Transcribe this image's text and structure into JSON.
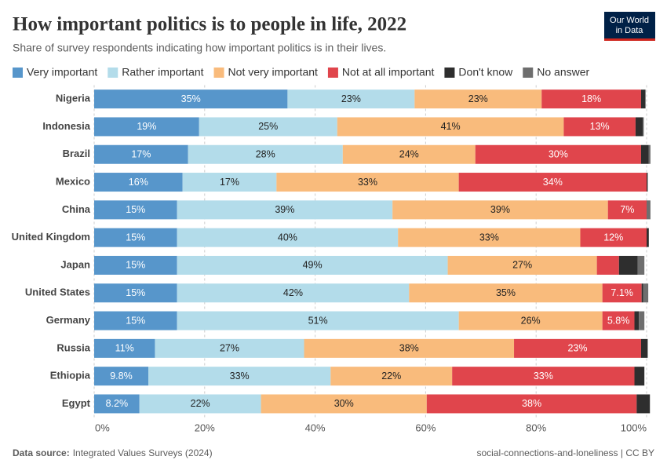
{
  "chart_data": {
    "type": "stacked-bar-horizontal",
    "title": "How important politics is to people in life, 2022",
    "subtitle": "Share of survey respondents indicating how important politics is in their lives.",
    "logo": [
      "Our World",
      "in Data"
    ],
    "source_label": "Data source:",
    "source": "Integrated Values Surveys (2024)",
    "url": "social-connections-and-loneliness | CC BY",
    "categories": [
      "Nigeria",
      "Indonesia",
      "Brazil",
      "Mexico",
      "China",
      "United Kingdom",
      "Japan",
      "United States",
      "Germany",
      "Russia",
      "Ethiopia",
      "Egypt"
    ],
    "series": [
      {
        "name": "Very important",
        "color": "#5796cb",
        "values": [
          35,
          19,
          17,
          16,
          15,
          15,
          15,
          15,
          15,
          11,
          9.8,
          8.2
        ],
        "value_labels": [
          "35%",
          "19%",
          "17%",
          "16%",
          "15%",
          "15%",
          "15%",
          "15%",
          "15%",
          "11%",
          "9.8%",
          "8.2%"
        ]
      },
      {
        "name": "Rather important",
        "color": "#b3dcea",
        "values": [
          23,
          25,
          28,
          17,
          39,
          40,
          49,
          42,
          51,
          27,
          33,
          22
        ],
        "value_labels": [
          "23%",
          "25%",
          "28%",
          "17%",
          "39%",
          "40%",
          "49%",
          "42%",
          "51%",
          "27%",
          "33%",
          "22%"
        ]
      },
      {
        "name": "Not very important",
        "color": "#f9bb7c",
        "values": [
          23,
          41,
          24,
          33,
          39,
          33,
          27,
          35,
          26,
          38,
          22,
          30
        ],
        "value_labels": [
          "23%",
          "41%",
          "24%",
          "33%",
          "39%",
          "33%",
          "27%",
          "35%",
          "26%",
          "38%",
          "22%",
          "30%"
        ]
      },
      {
        "name": "Not at all important",
        "color": "#e0454c",
        "values": [
          18,
          13,
          30,
          34,
          7,
          12,
          4,
          7.1,
          5.8,
          23,
          33,
          38
        ],
        "value_labels": [
          "18%",
          "13%",
          "30%",
          "34%",
          "7%",
          "12%",
          null,
          "7.1%",
          "5.8%",
          "23%",
          "33%",
          "38%"
        ]
      },
      {
        "name": "Don't know",
        "color": "#2e2e2e",
        "values": [
          0.8,
          1.3,
          1.4,
          0.2,
          0,
          0.4,
          3.4,
          0.3,
          0.8,
          1.2,
          1.8,
          2.4
        ]
      },
      {
        "name": "No answer",
        "color": "#6e6e6e",
        "values": [
          0,
          0.2,
          0.3,
          0,
          0.7,
          0,
          1.2,
          0.9,
          1.0,
          0,
          0,
          0
        ]
      }
    ],
    "xlim": [
      0,
      100
    ],
    "xticks": [
      {
        "value": 0,
        "label": "0%"
      },
      {
        "value": 20,
        "label": "20%"
      },
      {
        "value": 40,
        "label": "40%"
      },
      {
        "value": 60,
        "label": "60%"
      },
      {
        "value": 80,
        "label": "80%"
      },
      {
        "value": 100,
        "label": "100%"
      }
    ],
    "grid": true
  }
}
